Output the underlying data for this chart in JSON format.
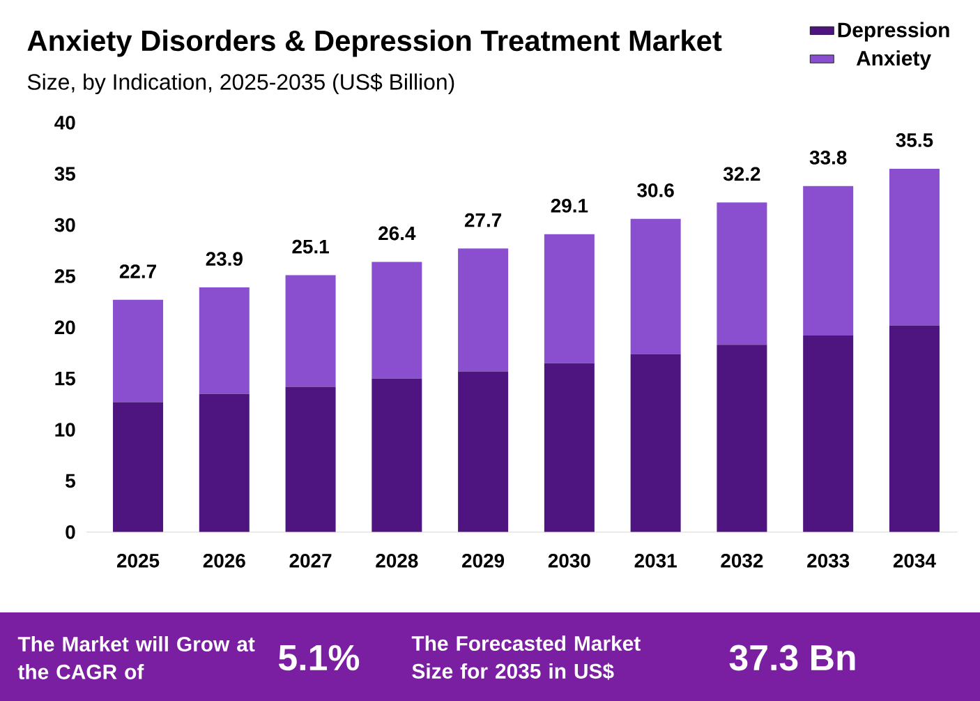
{
  "chart_data": {
    "type": "bar",
    "stacked": true,
    "title": "Anxiety Disorders & Depression Treatment Market",
    "subtitle": "Size, by Indication, 2025-2035 (US$ Billion)",
    "categories": [
      "2025",
      "2026",
      "2027",
      "2028",
      "2029",
      "2030",
      "2031",
      "2032",
      "2033",
      "2034"
    ],
    "series": [
      {
        "name": "Depression",
        "color": "#4e1580",
        "values": [
          12.7,
          13.5,
          14.2,
          15.0,
          15.7,
          16.5,
          17.4,
          18.3,
          19.2,
          20.2
        ]
      },
      {
        "name": "Anxiety",
        "color": "#8a4fcf",
        "values": [
          10.0,
          10.4,
          10.9,
          11.4,
          12.0,
          12.6,
          13.2,
          13.9,
          14.6,
          15.3
        ]
      }
    ],
    "totals": [
      "22.7",
      "23.9",
      "25.1",
      "26.4",
      "27.7",
      "29.1",
      "30.6",
      "32.2",
      "33.8",
      "35.5"
    ],
    "ylim": [
      0,
      40
    ],
    "yticks": [
      0,
      5,
      10,
      15,
      20,
      25,
      30,
      35,
      40
    ],
    "legend": "top right",
    "annotations": [
      "The Market will Grow at the CAGR of",
      "5.1%",
      "The Forecasted Market Size for 2035 in US$",
      "37.3 Bn"
    ]
  }
}
